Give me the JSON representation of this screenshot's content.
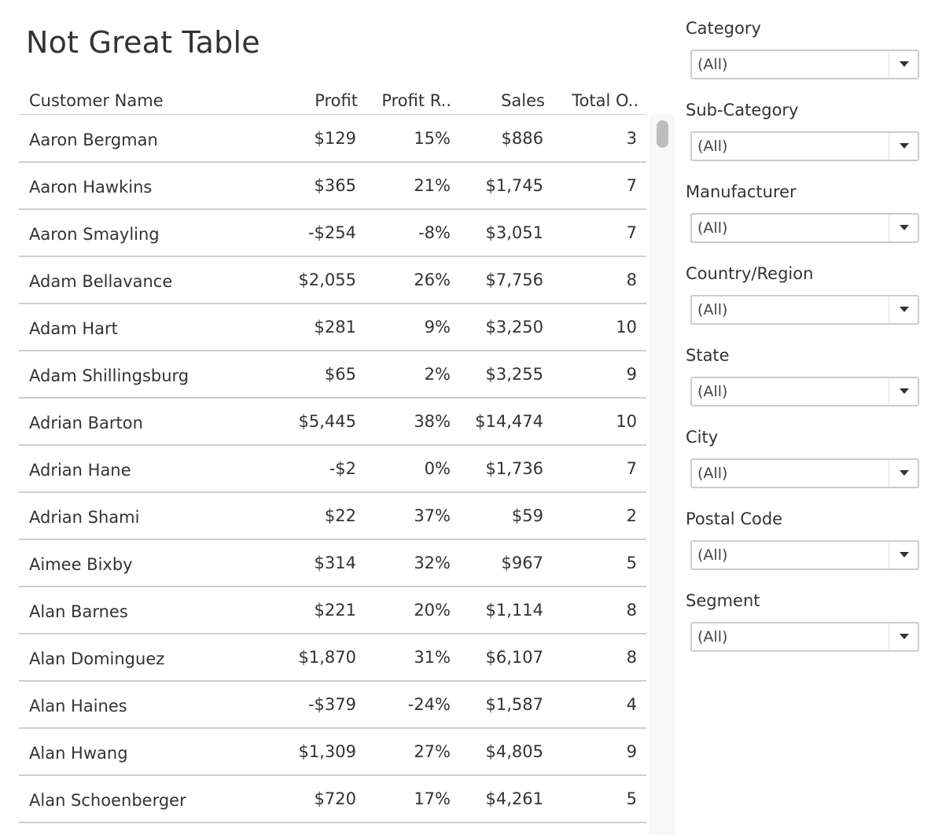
{
  "title": "Not Great Table",
  "table": {
    "columns": [
      {
        "key": "name",
        "label": "Customer Name"
      },
      {
        "key": "profit",
        "label": "Profit"
      },
      {
        "key": "profit_ratio",
        "label": "Profit R.."
      },
      {
        "key": "sales",
        "label": "Sales"
      },
      {
        "key": "total_orders",
        "label": "Total O.."
      }
    ],
    "rows": [
      {
        "name": "Aaron Bergman",
        "profit": "$129",
        "profit_ratio": "15%",
        "sales": "$886",
        "total_orders": "3"
      },
      {
        "name": "Aaron Hawkins",
        "profit": "$365",
        "profit_ratio": "21%",
        "sales": "$1,745",
        "total_orders": "7"
      },
      {
        "name": "Aaron Smayling",
        "profit": "-$254",
        "profit_ratio": "-8%",
        "sales": "$3,051",
        "total_orders": "7"
      },
      {
        "name": "Adam Bellavance",
        "profit": "$2,055",
        "profit_ratio": "26%",
        "sales": "$7,756",
        "total_orders": "8"
      },
      {
        "name": "Adam Hart",
        "profit": "$281",
        "profit_ratio": "9%",
        "sales": "$3,250",
        "total_orders": "10"
      },
      {
        "name": "Adam Shillingsburg",
        "profit": "$65",
        "profit_ratio": "2%",
        "sales": "$3,255",
        "total_orders": "9"
      },
      {
        "name": "Adrian Barton",
        "profit": "$5,445",
        "profit_ratio": "38%",
        "sales": "$14,474",
        "total_orders": "10"
      },
      {
        "name": "Adrian Hane",
        "profit": "-$2",
        "profit_ratio": "0%",
        "sales": "$1,736",
        "total_orders": "7"
      },
      {
        "name": "Adrian Shami",
        "profit": "$22",
        "profit_ratio": "37%",
        "sales": "$59",
        "total_orders": "2"
      },
      {
        "name": "Aimee Bixby",
        "profit": "$314",
        "profit_ratio": "32%",
        "sales": "$967",
        "total_orders": "5"
      },
      {
        "name": "Alan Barnes",
        "profit": "$221",
        "profit_ratio": "20%",
        "sales": "$1,114",
        "total_orders": "8"
      },
      {
        "name": "Alan Dominguez",
        "profit": "$1,870",
        "profit_ratio": "31%",
        "sales": "$6,107",
        "total_orders": "8"
      },
      {
        "name": "Alan Haines",
        "profit": "-$379",
        "profit_ratio": "-24%",
        "sales": "$1,587",
        "total_orders": "4"
      },
      {
        "name": "Alan Hwang",
        "profit": "$1,309",
        "profit_ratio": "27%",
        "sales": "$4,805",
        "total_orders": "9"
      },
      {
        "name": "Alan Schoenberger",
        "profit": "$720",
        "profit_ratio": "17%",
        "sales": "$4,261",
        "total_orders": "5"
      }
    ]
  },
  "filters": [
    {
      "label": "Category",
      "value": "(All)"
    },
    {
      "label": "Sub-Category",
      "value": "(All)"
    },
    {
      "label": "Manufacturer",
      "value": "(All)"
    },
    {
      "label": "Country/Region",
      "value": "(All)"
    },
    {
      "label": "State",
      "value": "(All)"
    },
    {
      "label": "City",
      "value": "(All)"
    },
    {
      "label": "Postal Code",
      "value": "(All)"
    },
    {
      "label": "Segment",
      "value": "(All)"
    }
  ],
  "icons": {
    "dropdown": "chevron-down-icon"
  },
  "colors": {
    "text": "#333333",
    "row_divider": "#cfcfcf",
    "filter_border": "#cccccc",
    "scroll_thumb": "#bdbdbd"
  }
}
